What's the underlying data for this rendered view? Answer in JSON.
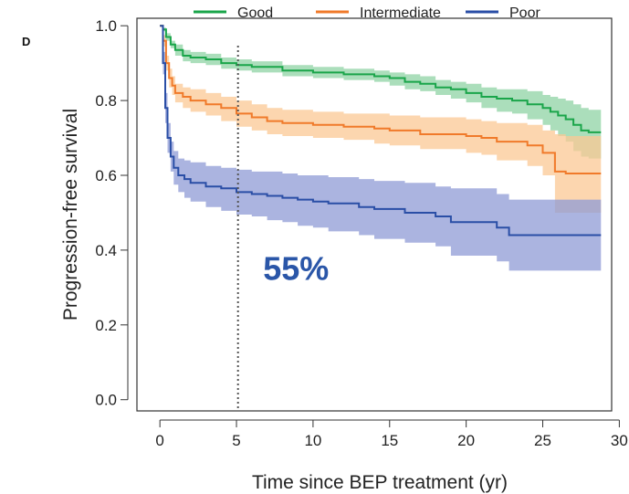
{
  "panel_label": "D",
  "chart_data": {
    "type": "line",
    "step": true,
    "xlabel": "Time since BEP treatment (yr)",
    "ylabel": "Progression-free survival",
    "xlim": [
      -1.5,
      29.5
    ],
    "ylim": [
      -0.03,
      1.02
    ],
    "xticks": [
      0,
      5,
      10,
      15,
      20,
      25,
      30
    ],
    "yticks": [
      0.0,
      0.2,
      0.4,
      0.6,
      0.8,
      1.0
    ],
    "ytick_labels": [
      "0.0",
      "0.2",
      "0.4",
      "0.6",
      "0.8",
      "1.0"
    ],
    "legend_position": "top",
    "reference_line": {
      "x": 5.1,
      "style": "dotted",
      "color": "#555555"
    },
    "annotation": {
      "text": "55%",
      "x": 6.8,
      "y": 0.35,
      "color": "#2a56a8"
    },
    "series": [
      {
        "name": "Good",
        "color": "#1aa54a",
        "band_color": "#8fd3a4",
        "points": [
          [
            0,
            1.0
          ],
          [
            0.2,
            0.99
          ],
          [
            0.4,
            0.97
          ],
          [
            0.7,
            0.95
          ],
          [
            1.0,
            0.935
          ],
          [
            1.5,
            0.92
          ],
          [
            2.0,
            0.915
          ],
          [
            3.0,
            0.91
          ],
          [
            4.0,
            0.9
          ],
          [
            5.0,
            0.895
          ],
          [
            6.0,
            0.89
          ],
          [
            8.0,
            0.88
          ],
          [
            10.0,
            0.875
          ],
          [
            12.0,
            0.87
          ],
          [
            14.0,
            0.865
          ],
          [
            15.0,
            0.86
          ],
          [
            16.0,
            0.85
          ],
          [
            17.0,
            0.845
          ],
          [
            18.0,
            0.835
          ],
          [
            19.0,
            0.83
          ],
          [
            20.0,
            0.82
          ],
          [
            21.0,
            0.81
          ],
          [
            22.0,
            0.805
          ],
          [
            23.0,
            0.8
          ],
          [
            24.0,
            0.79
          ],
          [
            25.0,
            0.78
          ],
          [
            25.5,
            0.77
          ],
          [
            26.0,
            0.76
          ],
          [
            26.5,
            0.75
          ],
          [
            27.0,
            0.735
          ],
          [
            27.5,
            0.72
          ],
          [
            28.0,
            0.715
          ],
          [
            28.8,
            0.715
          ]
        ],
        "lower": [
          [
            0,
            1.0
          ],
          [
            0.2,
            0.985
          ],
          [
            0.4,
            0.96
          ],
          [
            0.7,
            0.94
          ],
          [
            1.0,
            0.92
          ],
          [
            1.5,
            0.905
          ],
          [
            2.0,
            0.9
          ],
          [
            3.0,
            0.895
          ],
          [
            4.0,
            0.885
          ],
          [
            5.0,
            0.88
          ],
          [
            6.0,
            0.875
          ],
          [
            8.0,
            0.865
          ],
          [
            10.0,
            0.86
          ],
          [
            12.0,
            0.855
          ],
          [
            14.0,
            0.85
          ],
          [
            15.0,
            0.84
          ],
          [
            16.0,
            0.83
          ],
          [
            17.0,
            0.825
          ],
          [
            18.0,
            0.815
          ],
          [
            19.0,
            0.805
          ],
          [
            20.0,
            0.795
          ],
          [
            21.0,
            0.78
          ],
          [
            22.0,
            0.77
          ],
          [
            23.0,
            0.765
          ],
          [
            24.0,
            0.75
          ],
          [
            25.0,
            0.735
          ],
          [
            25.5,
            0.72
          ],
          [
            26.0,
            0.705
          ],
          [
            26.5,
            0.69
          ],
          [
            27.0,
            0.665
          ],
          [
            27.5,
            0.65
          ],
          [
            28.0,
            0.645
          ],
          [
            28.8,
            0.645
          ]
        ],
        "upper": [
          [
            0,
            1.0
          ],
          [
            0.2,
            0.995
          ],
          [
            0.4,
            0.98
          ],
          [
            0.7,
            0.96
          ],
          [
            1.0,
            0.95
          ],
          [
            1.5,
            0.935
          ],
          [
            2.0,
            0.93
          ],
          [
            3.0,
            0.925
          ],
          [
            4.0,
            0.915
          ],
          [
            5.0,
            0.91
          ],
          [
            6.0,
            0.905
          ],
          [
            8.0,
            0.895
          ],
          [
            10.0,
            0.89
          ],
          [
            12.0,
            0.885
          ],
          [
            14.0,
            0.88
          ],
          [
            15.0,
            0.875
          ],
          [
            16.0,
            0.87
          ],
          [
            17.0,
            0.865
          ],
          [
            18.0,
            0.855
          ],
          [
            19.0,
            0.85
          ],
          [
            20.0,
            0.845
          ],
          [
            21.0,
            0.835
          ],
          [
            22.0,
            0.83
          ],
          [
            23.0,
            0.83
          ],
          [
            24.0,
            0.825
          ],
          [
            25.0,
            0.815
          ],
          [
            25.5,
            0.81
          ],
          [
            26.0,
            0.805
          ],
          [
            26.5,
            0.8
          ],
          [
            27.0,
            0.79
          ],
          [
            27.5,
            0.78
          ],
          [
            28.0,
            0.775
          ],
          [
            28.8,
            0.775
          ]
        ]
      },
      {
        "name": "Intermediate",
        "color": "#f07a2a",
        "band_color": "#fbc894",
        "points": [
          [
            0,
            1.0
          ],
          [
            0.2,
            0.96
          ],
          [
            0.4,
            0.9
          ],
          [
            0.6,
            0.86
          ],
          [
            0.8,
            0.84
          ],
          [
            1.0,
            0.82
          ],
          [
            1.5,
            0.81
          ],
          [
            2.0,
            0.8
          ],
          [
            3.0,
            0.79
          ],
          [
            4.0,
            0.78
          ],
          [
            5.0,
            0.765
          ],
          [
            6.0,
            0.755
          ],
          [
            7.0,
            0.745
          ],
          [
            8.0,
            0.74
          ],
          [
            10.0,
            0.735
          ],
          [
            12.0,
            0.73
          ],
          [
            14.0,
            0.725
          ],
          [
            15.0,
            0.72
          ],
          [
            17.0,
            0.71
          ],
          [
            20.0,
            0.705
          ],
          [
            21.0,
            0.7
          ],
          [
            22.0,
            0.69
          ],
          [
            24.0,
            0.68
          ],
          [
            25.0,
            0.66
          ],
          [
            25.8,
            0.61
          ],
          [
            26.5,
            0.605
          ],
          [
            28.8,
            0.605
          ]
        ],
        "lower": [
          [
            0,
            1.0
          ],
          [
            0.2,
            0.945
          ],
          [
            0.4,
            0.88
          ],
          [
            0.6,
            0.835
          ],
          [
            0.8,
            0.815
          ],
          [
            1.0,
            0.795
          ],
          [
            1.5,
            0.78
          ],
          [
            2.0,
            0.77
          ],
          [
            3.0,
            0.76
          ],
          [
            4.0,
            0.745
          ],
          [
            5.0,
            0.73
          ],
          [
            6.0,
            0.72
          ],
          [
            7.0,
            0.71
          ],
          [
            8.0,
            0.705
          ],
          [
            10.0,
            0.7
          ],
          [
            12.0,
            0.695
          ],
          [
            14.0,
            0.685
          ],
          [
            15.0,
            0.68
          ],
          [
            17.0,
            0.67
          ],
          [
            20.0,
            0.66
          ],
          [
            21.0,
            0.655
          ],
          [
            22.0,
            0.64
          ],
          [
            24.0,
            0.625
          ],
          [
            25.0,
            0.6
          ],
          [
            25.8,
            0.5
          ],
          [
            26.5,
            0.5
          ],
          [
            28.8,
            0.5
          ]
        ],
        "upper": [
          [
            0,
            1.0
          ],
          [
            0.2,
            0.975
          ],
          [
            0.4,
            0.92
          ],
          [
            0.6,
            0.885
          ],
          [
            0.8,
            0.865
          ],
          [
            1.0,
            0.845
          ],
          [
            1.5,
            0.835
          ],
          [
            2.0,
            0.83
          ],
          [
            3.0,
            0.82
          ],
          [
            4.0,
            0.81
          ],
          [
            5.0,
            0.8
          ],
          [
            6.0,
            0.79
          ],
          [
            7.0,
            0.78
          ],
          [
            8.0,
            0.775
          ],
          [
            10.0,
            0.77
          ],
          [
            12.0,
            0.765
          ],
          [
            14.0,
            0.765
          ],
          [
            15.0,
            0.76
          ],
          [
            17.0,
            0.755
          ],
          [
            20.0,
            0.75
          ],
          [
            21.0,
            0.745
          ],
          [
            22.0,
            0.74
          ],
          [
            24.0,
            0.735
          ],
          [
            25.0,
            0.72
          ],
          [
            25.8,
            0.71
          ],
          [
            26.5,
            0.705
          ],
          [
            28.8,
            0.705
          ]
        ]
      },
      {
        "name": "Poor",
        "color": "#2a4ea6",
        "band_color": "#8f9bd6",
        "points": [
          [
            0,
            1.0
          ],
          [
            0.2,
            0.9
          ],
          [
            0.35,
            0.78
          ],
          [
            0.5,
            0.7
          ],
          [
            0.7,
            0.65
          ],
          [
            0.9,
            0.62
          ],
          [
            1.2,
            0.6
          ],
          [
            1.6,
            0.59
          ],
          [
            2.0,
            0.58
          ],
          [
            3.0,
            0.57
          ],
          [
            4.0,
            0.565
          ],
          [
            5.0,
            0.555
          ],
          [
            6.0,
            0.55
          ],
          [
            7.0,
            0.545
          ],
          [
            8.0,
            0.54
          ],
          [
            9.0,
            0.535
          ],
          [
            10.0,
            0.53
          ],
          [
            11.0,
            0.525
          ],
          [
            13.0,
            0.515
          ],
          [
            14.0,
            0.51
          ],
          [
            16.0,
            0.5
          ],
          [
            18.0,
            0.49
          ],
          [
            19.0,
            0.475
          ],
          [
            22.0,
            0.46
          ],
          [
            22.8,
            0.44
          ],
          [
            28.8,
            0.44
          ]
        ],
        "lower": [
          [
            0,
            1.0
          ],
          [
            0.2,
            0.87
          ],
          [
            0.35,
            0.74
          ],
          [
            0.5,
            0.66
          ],
          [
            0.7,
            0.61
          ],
          [
            0.9,
            0.575
          ],
          [
            1.2,
            0.555
          ],
          [
            1.6,
            0.54
          ],
          [
            2.0,
            0.53
          ],
          [
            3.0,
            0.515
          ],
          [
            4.0,
            0.505
          ],
          [
            5.0,
            0.495
          ],
          [
            6.0,
            0.49
          ],
          [
            7.0,
            0.48
          ],
          [
            8.0,
            0.475
          ],
          [
            9.0,
            0.465
          ],
          [
            10.0,
            0.46
          ],
          [
            11.0,
            0.45
          ],
          [
            13.0,
            0.44
          ],
          [
            14.0,
            0.43
          ],
          [
            16.0,
            0.42
          ],
          [
            18.0,
            0.41
          ],
          [
            19.0,
            0.385
          ],
          [
            22.0,
            0.37
          ],
          [
            22.8,
            0.345
          ],
          [
            28.8,
            0.345
          ]
        ],
        "upper": [
          [
            0,
            1.0
          ],
          [
            0.2,
            0.93
          ],
          [
            0.35,
            0.82
          ],
          [
            0.5,
            0.74
          ],
          [
            0.7,
            0.69
          ],
          [
            0.9,
            0.665
          ],
          [
            1.2,
            0.645
          ],
          [
            1.6,
            0.64
          ],
          [
            2.0,
            0.635
          ],
          [
            3.0,
            0.625
          ],
          [
            4.0,
            0.62
          ],
          [
            5.0,
            0.615
          ],
          [
            6.0,
            0.61
          ],
          [
            7.0,
            0.61
          ],
          [
            8.0,
            0.605
          ],
          [
            9.0,
            0.6
          ],
          [
            10.0,
            0.6
          ],
          [
            11.0,
            0.595
          ],
          [
            13.0,
            0.59
          ],
          [
            14.0,
            0.585
          ],
          [
            16.0,
            0.58
          ],
          [
            18.0,
            0.57
          ],
          [
            19.0,
            0.565
          ],
          [
            22.0,
            0.55
          ],
          [
            22.8,
            0.535
          ],
          [
            28.8,
            0.535
          ]
        ]
      }
    ]
  }
}
